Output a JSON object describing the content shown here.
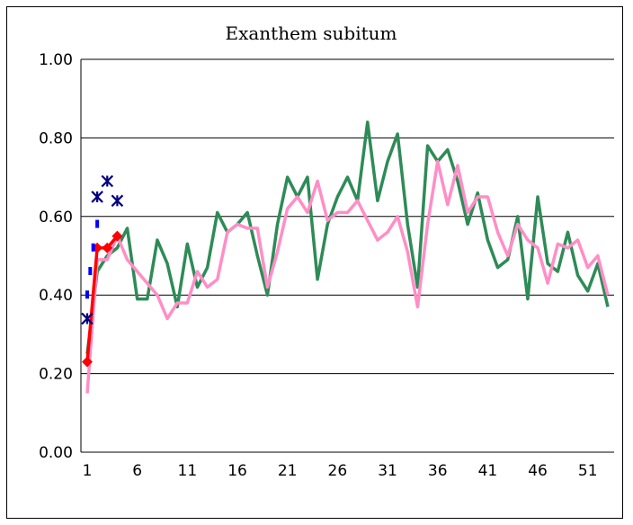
{
  "chart_data": {
    "type": "line",
    "title": "Exanthem subitum",
    "xlabel": "",
    "ylabel": "",
    "x": [
      1,
      2,
      3,
      4,
      5,
      6,
      7,
      8,
      9,
      10,
      11,
      12,
      13,
      14,
      15,
      16,
      17,
      18,
      19,
      20,
      21,
      22,
      23,
      24,
      25,
      26,
      27,
      28,
      29,
      30,
      31,
      32,
      33,
      34,
      35,
      36,
      37,
      38,
      39,
      40,
      41,
      42,
      43,
      44,
      45,
      46,
      47,
      48,
      49,
      50,
      51,
      52,
      53
    ],
    "xticks": [
      "1",
      "6",
      "11",
      "16",
      "21",
      "26",
      "31",
      "36",
      "41",
      "46",
      "51"
    ],
    "yticks": [
      "0.00",
      "0.20",
      "0.40",
      "0.60",
      "0.80",
      "1.00"
    ],
    "ylim": [
      0,
      1
    ],
    "grid": "horizontal",
    "legend": "none",
    "series": [
      {
        "color": "#2e8b57",
        "style": "line",
        "values": [
          0.25,
          0.46,
          0.5,
          0.52,
          0.57,
          0.39,
          0.39,
          0.54,
          0.48,
          0.37,
          0.53,
          0.42,
          0.47,
          0.61,
          0.56,
          0.58,
          0.61,
          0.5,
          0.4,
          0.58,
          0.7,
          0.65,
          0.7,
          0.44,
          0.58,
          0.65,
          0.7,
          0.64,
          0.84,
          0.64,
          0.74,
          0.81,
          0.58,
          0.42,
          0.78,
          0.74,
          0.77,
          0.69,
          0.58,
          0.66,
          0.54,
          0.47,
          0.49,
          0.6,
          0.39,
          0.65,
          0.48,
          0.46,
          0.56,
          0.45,
          0.41,
          0.48,
          0.37
        ]
      },
      {
        "color": "#ff8ec6",
        "style": "line",
        "values": [
          0.15,
          0.49,
          0.49,
          0.55,
          0.49,
          0.46,
          0.43,
          0.4,
          0.34,
          0.38,
          0.38,
          0.46,
          0.42,
          0.44,
          0.56,
          0.58,
          0.57,
          0.57,
          0.42,
          0.51,
          0.62,
          0.65,
          0.61,
          0.69,
          0.59,
          0.61,
          0.61,
          0.64,
          0.59,
          0.54,
          0.56,
          0.6,
          0.51,
          0.37,
          0.58,
          0.74,
          0.63,
          0.73,
          0.61,
          0.65,
          0.65,
          0.56,
          0.5,
          0.58,
          0.54,
          0.52,
          0.43,
          0.53,
          0.52,
          0.54,
          0.47,
          0.5,
          0.4
        ]
      },
      {
        "color": "#ff0000",
        "style": "line-diamond",
        "x": [
          1,
          2,
          3,
          4
        ],
        "values": [
          0.23,
          0.52,
          0.52,
          0.55
        ]
      },
      {
        "color": "#000080",
        "style": "star",
        "x": [
          1,
          2,
          3,
          4
        ],
        "values": [
          0.34,
          0.65,
          0.69,
          0.64
        ]
      },
      {
        "color": "#0000ff",
        "style": "dash",
        "x": [
          1,
          1.3,
          1.6,
          2
        ],
        "values": [
          0.4,
          0.46,
          0.52,
          0.58
        ]
      }
    ]
  }
}
